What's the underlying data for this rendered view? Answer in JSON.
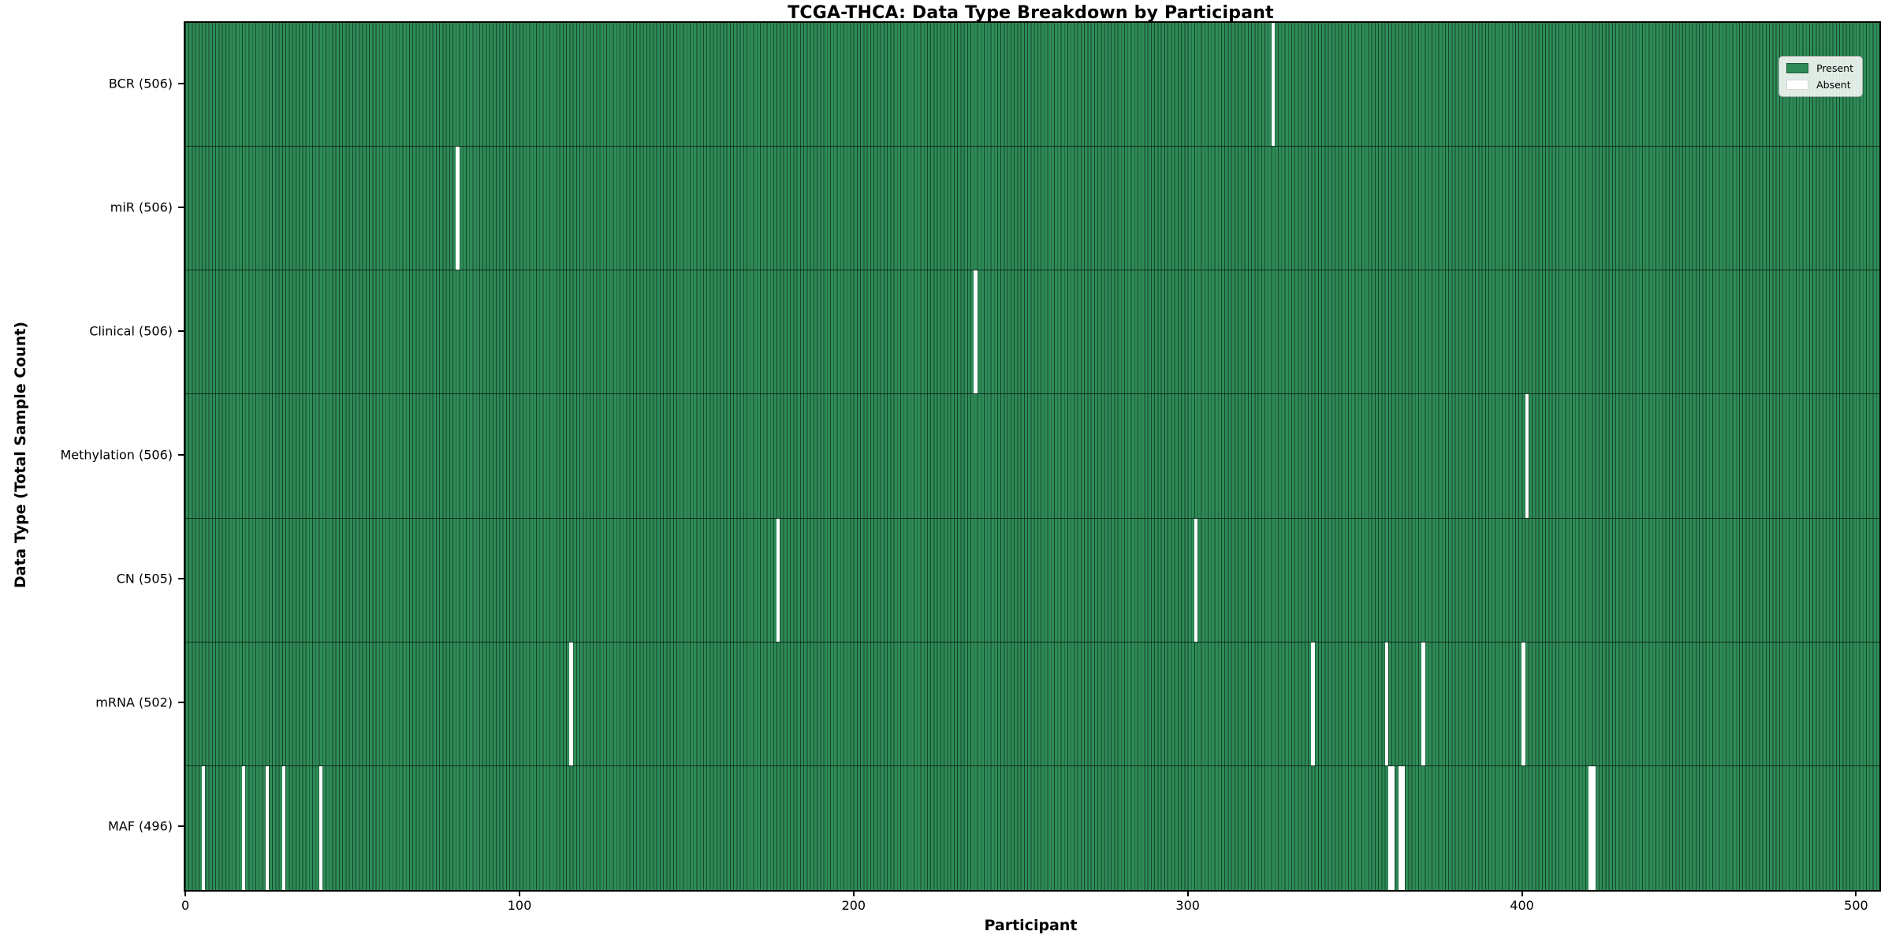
{
  "chart_data": {
    "type": "heatmap",
    "title": "TCGA-THCA: Data Type Breakdown by Participant",
    "xlabel": "Participant",
    "ylabel": "Data Type (Total Sample Count)",
    "n_participants": 507,
    "xlim": [
      -0.5,
      506.5
    ],
    "x_ticks": [
      0,
      100,
      200,
      300,
      400,
      500
    ],
    "present_color": "#2E8B57",
    "absent_color": "#FFFFFF",
    "grid": false,
    "legend_position": "upper right",
    "legend": {
      "entries": [
        {
          "label": "Present",
          "color": "#2E8B57"
        },
        {
          "label": "Absent",
          "color": "#FFFFFF"
        }
      ]
    },
    "rows": [
      {
        "label": "BCR (506)",
        "data_type": "BCR",
        "present_count": 506,
        "absent_participants": [
          325
        ]
      },
      {
        "label": "miR (506)",
        "data_type": "miR",
        "present_count": 506,
        "absent_participants": [
          81
        ]
      },
      {
        "label": "Clinical (506)",
        "data_type": "Clinical",
        "present_count": 506,
        "absent_participants": [
          236
        ]
      },
      {
        "label": "Methylation (506)",
        "data_type": "Methylation",
        "present_count": 506,
        "absent_participants": [
          401
        ]
      },
      {
        "label": "CN (505)",
        "data_type": "CN",
        "present_count": 505,
        "absent_participants": [
          177,
          302
        ]
      },
      {
        "label": "mRNA (502)",
        "data_type": "mRNA",
        "present_count": 502,
        "absent_participants": [
          115,
          337,
          359,
          370,
          400
        ]
      },
      {
        "label": "MAF (496)",
        "data_type": "MAF",
        "present_count": 496,
        "absent_participants": [
          5,
          17,
          24,
          29,
          40,
          360,
          361,
          363,
          364,
          420,
          421
        ]
      }
    ]
  }
}
